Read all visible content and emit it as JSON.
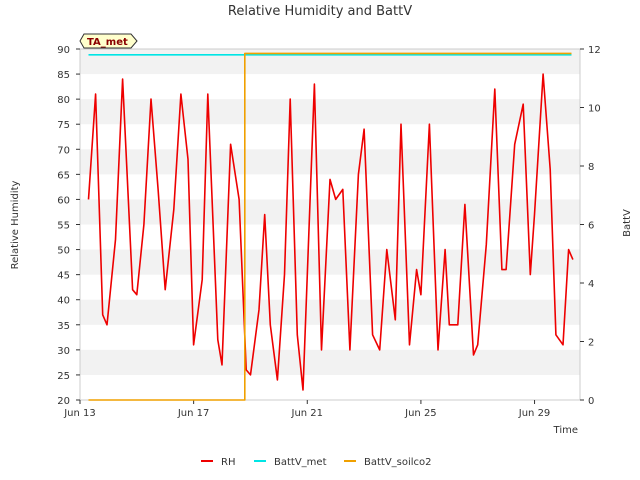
{
  "chart_data": {
    "type": "line",
    "title": "Relative Humidity and BattV",
    "xlabel": "Time",
    "ylabel": "Relative Humidity",
    "y2label": "BattV",
    "badge": "TA_met",
    "xlim": [
      13,
      30.6
    ],
    "ylim": [
      20,
      90
    ],
    "y2lim": [
      0,
      12
    ],
    "x_ticks": [
      13,
      17,
      21,
      25,
      29
    ],
    "x_tick_labels": [
      "Jun 13",
      "Jun 17",
      "Jun 21",
      "Jun 25",
      "Jun 29"
    ],
    "y_ticks": [
      20,
      25,
      30,
      35,
      40,
      45,
      50,
      55,
      60,
      65,
      70,
      75,
      80,
      85,
      90
    ],
    "y2_ticks": [
      0,
      2,
      4,
      6,
      8,
      10,
      12
    ],
    "grid": "horizontal bands",
    "legend_position": "bottom-center",
    "series": [
      {
        "name": "RH",
        "axis": "left",
        "color": "#ee0000",
        "x": [
          13.3,
          13.55,
          13.8,
          13.95,
          14.25,
          14.5,
          14.85,
          15.0,
          15.25,
          15.5,
          15.75,
          16.0,
          16.3,
          16.55,
          16.8,
          17.0,
          17.3,
          17.5,
          17.85,
          18.0,
          18.3,
          18.6,
          18.85,
          19.0,
          19.3,
          19.5,
          19.7,
          19.95,
          20.2,
          20.4,
          20.65,
          20.85,
          21.0,
          21.25,
          21.5,
          21.8,
          22.0,
          22.25,
          22.5,
          22.8,
          23.0,
          23.3,
          23.55,
          23.8,
          24.1,
          24.3,
          24.6,
          24.85,
          25.0,
          25.3,
          25.6,
          25.85,
          26.0,
          26.3,
          26.55,
          26.85,
          27.0,
          27.3,
          27.6,
          27.85,
          28.0,
          28.3,
          28.6,
          28.85,
          29.0,
          29.3,
          29.55,
          29.75,
          30.0,
          30.2,
          30.35
        ],
        "y": [
          60,
          81,
          37,
          35,
          52,
          84,
          42,
          41,
          55,
          80,
          62,
          42,
          58,
          81,
          68,
          31,
          44,
          81,
          32,
          27,
          71,
          60,
          26,
          25,
          38,
          57,
          35,
          24,
          45,
          80,
          33,
          22,
          45,
          83,
          30,
          64,
          60,
          62,
          30,
          65,
          74,
          33,
          30,
          50,
          36,
          75,
          31,
          46,
          41,
          75,
          30,
          50,
          35,
          35,
          59,
          29,
          31,
          51,
          82,
          46,
          46,
          71,
          79,
          45,
          57,
          85,
          66,
          33,
          31,
          50,
          48
        ]
      },
      {
        "name": "BattV_met",
        "axis": "right",
        "color": "#00e5e5",
        "x": [
          13.3,
          30.3
        ],
        "y": [
          11.8,
          11.8
        ]
      },
      {
        "name": "BattV_soilco2",
        "axis": "right",
        "color": "#f0a000",
        "x": [
          13.3,
          18.8,
          18.8,
          30.3
        ],
        "y": [
          0,
          0,
          11.85,
          11.85
        ]
      }
    ]
  }
}
